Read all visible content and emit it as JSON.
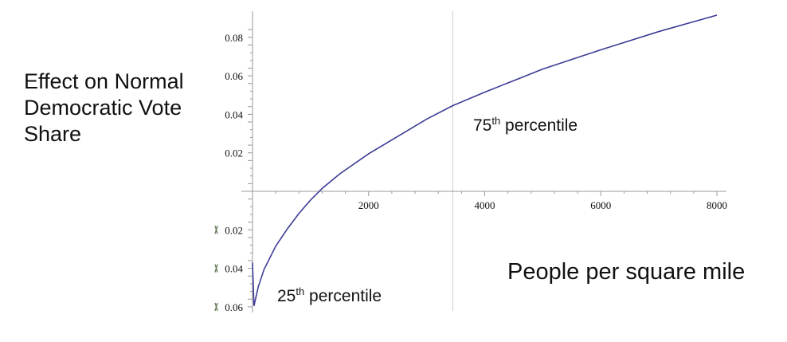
{
  "chart_data": {
    "type": "line",
    "title": "",
    "ylabel_lines": [
      "Effect on Normal",
      "Democratic Vote",
      "Share"
    ],
    "xlabel": "People per square mile",
    "xlim": [
      0,
      8000
    ],
    "ylim": [
      -0.06,
      0.09
    ],
    "x_ticks": [
      {
        "value": 2000,
        "label": "2000"
      },
      {
        "value": 4000,
        "label": "4000"
      },
      {
        "value": 6000,
        "label": "6000"
      },
      {
        "value": 8000,
        "label": "8000"
      }
    ],
    "y_ticks": [
      {
        "value": 0.08,
        "label": "0.08"
      },
      {
        "value": 0.06,
        "label": "0.06"
      },
      {
        "value": 0.04,
        "label": "0.04"
      },
      {
        "value": 0.02,
        "label": "0.02"
      },
      {
        "value": -0.02,
        "label": "0.02"
      },
      {
        "value": -0.04,
        "label": "0.04"
      },
      {
        "value": -0.06,
        "label": "0.06"
      }
    ],
    "series": [
      {
        "name": "",
        "color": "#3c3c96",
        "x": [
          0,
          25,
          100,
          200,
          400,
          600,
          800,
          1000,
          1200,
          1500,
          2000,
          2500,
          3000,
          3450,
          4000,
          5000,
          6000,
          7000,
          8000
        ],
        "y": [
          -0.037,
          -0.0595,
          -0.0495,
          -0.0405,
          -0.0285,
          -0.0195,
          -0.0115,
          -0.0045,
          0.0015,
          0.009,
          0.0195,
          0.0285,
          0.0375,
          0.0445,
          0.0515,
          0.0635,
          0.0735,
          0.083,
          0.0915
        ]
      }
    ],
    "annotations": [
      {
        "id": "p75",
        "number": "75",
        "suffix": "th",
        "text": " percentile",
        "x": 3450
      },
      {
        "id": "p25",
        "number": "25",
        "suffix": "th",
        "text": " percentile",
        "x": 0
      }
    ],
    "reference_lines": [
      {
        "axis": "x",
        "value": 3450,
        "color": "#cccccc"
      }
    ],
    "grid": false,
    "legend": "none"
  }
}
